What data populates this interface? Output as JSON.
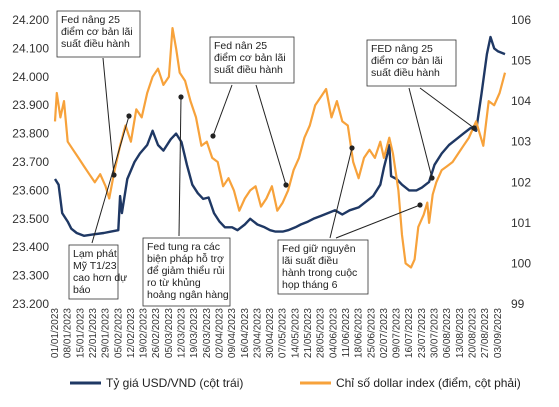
{
  "chart_data": {
    "type": "line",
    "y_left": {
      "ticks": [
        "24.200",
        "24.100",
        "24.000",
        "23.900",
        "23.800",
        "23.700",
        "23.600",
        "23.500",
        "23.400",
        "23.300",
        "23.200"
      ],
      "ylim": [
        23200,
        24200
      ]
    },
    "y_right": {
      "ticks": [
        "106",
        "105",
        "104",
        "103",
        "102",
        "101",
        "100",
        "99"
      ],
      "ylim": [
        99,
        106
      ]
    },
    "x_tick_labels": [
      "01/01/2023",
      "08/01/2023",
      "15/01/2023",
      "22/01/2023",
      "29/01/2023",
      "05/02/2023",
      "12/02/2023",
      "19/02/2023",
      "26/02/2023",
      "05/03/2023",
      "12/03/2023",
      "19/03/2023",
      "26/03/2023",
      "02/04/2023",
      "09/04/2023",
      "16/04/2023",
      "23/04/2023",
      "30/04/2023",
      "07/05/2023",
      "14/05/2023",
      "21/05/2023",
      "28/05/2023",
      "04/06/2023",
      "11/06/2023",
      "18/06/2023",
      "25/06/2023",
      "02/07/2023",
      "09/07/2023",
      "16/07/2023",
      "23/07/2023",
      "30/07/2023",
      "06/08/2023",
      "13/08/2023",
      "20/08/2023",
      "27/08/2023",
      "03/09/2023"
    ],
    "series": [
      {
        "name": "Tỷ giá USD/VND (cột trái)",
        "axis": "left",
        "color": "#1f3864",
        "points": [
          [
            "2023-01-01",
            23640
          ],
          [
            "2023-01-03",
            23620
          ],
          [
            "2023-01-05",
            23520
          ],
          [
            "2023-01-08",
            23490
          ],
          [
            "2023-01-10",
            23465
          ],
          [
            "2023-01-13",
            23450
          ],
          [
            "2023-01-17",
            23440
          ],
          [
            "2023-01-22",
            23445
          ],
          [
            "2023-01-28",
            23450
          ],
          [
            "2023-02-01",
            23455
          ],
          [
            "2023-02-05",
            23460
          ],
          [
            "2023-02-06",
            23580
          ],
          [
            "2023-02-07",
            23520
          ],
          [
            "2023-02-10",
            23640
          ],
          [
            "2023-02-14",
            23700
          ],
          [
            "2023-02-17",
            23730
          ],
          [
            "2023-02-21",
            23760
          ],
          [
            "2023-02-24",
            23810
          ],
          [
            "2023-02-27",
            23760
          ],
          [
            "2023-03-02",
            23740
          ],
          [
            "2023-03-06",
            23780
          ],
          [
            "2023-03-09",
            23800
          ],
          [
            "2023-03-12",
            23770
          ],
          [
            "2023-03-15",
            23690
          ],
          [
            "2023-03-18",
            23620
          ],
          [
            "2023-03-21",
            23590
          ],
          [
            "2023-03-24",
            23570
          ],
          [
            "2023-03-27",
            23575
          ],
          [
            "2023-03-30",
            23520
          ],
          [
            "2023-04-02",
            23490
          ],
          [
            "2023-04-05",
            23470
          ],
          [
            "2023-04-09",
            23470
          ],
          [
            "2023-04-12",
            23460
          ],
          [
            "2023-04-16",
            23480
          ],
          [
            "2023-04-19",
            23500
          ],
          [
            "2023-04-23",
            23480
          ],
          [
            "2023-04-27",
            23470
          ],
          [
            "2023-04-30",
            23460
          ],
          [
            "2023-05-03",
            23455
          ],
          [
            "2023-05-07",
            23455
          ],
          [
            "2023-05-10",
            23460
          ],
          [
            "2023-05-14",
            23470
          ],
          [
            "2023-05-17",
            23480
          ],
          [
            "2023-05-21",
            23490
          ],
          [
            "2023-05-24",
            23500
          ],
          [
            "2023-05-28",
            23510
          ],
          [
            "2023-06-01",
            23520
          ],
          [
            "2023-06-05",
            23530
          ],
          [
            "2023-06-09",
            23515
          ],
          [
            "2023-06-13",
            23530
          ],
          [
            "2023-06-18",
            23540
          ],
          [
            "2023-06-22",
            23560
          ],
          [
            "2023-06-26",
            23580
          ],
          [
            "2023-06-30",
            23620
          ],
          [
            "2023-07-02",
            23680
          ],
          [
            "2023-07-04",
            23730
          ],
          [
            "2023-07-05",
            23760
          ],
          [
            "2023-07-06",
            23650
          ],
          [
            "2023-07-09",
            23640
          ],
          [
            "2023-07-12",
            23620
          ],
          [
            "2023-07-16",
            23600
          ],
          [
            "2023-07-20",
            23600
          ],
          [
            "2023-07-23",
            23610
          ],
          [
            "2023-07-27",
            23630
          ],
          [
            "2023-07-30",
            23690
          ],
          [
            "2023-08-03",
            23730
          ],
          [
            "2023-08-07",
            23760
          ],
          [
            "2023-08-11",
            23780
          ],
          [
            "2023-08-15",
            23800
          ],
          [
            "2023-08-19",
            23820
          ],
          [
            "2023-08-22",
            23810
          ],
          [
            "2023-08-25",
            23940
          ],
          [
            "2023-08-28",
            24080
          ],
          [
            "2023-08-30",
            24140
          ],
          [
            "2023-09-01",
            24100
          ],
          [
            "2023-09-03",
            24090
          ],
          [
            "2023-09-07",
            24080
          ]
        ]
      },
      {
        "name": "Chỉ số dollar index (điểm, cột phải)",
        "axis": "right",
        "color": "#f7a23b",
        "points": [
          [
            "2023-01-01",
            103.5
          ],
          [
            "2023-01-02",
            104.2
          ],
          [
            "2023-01-04",
            103.6
          ],
          [
            "2023-01-06",
            104.0
          ],
          [
            "2023-01-08",
            103.0
          ],
          [
            "2023-01-11",
            102.8
          ],
          [
            "2023-01-14",
            102.6
          ],
          [
            "2023-01-17",
            102.4
          ],
          [
            "2023-01-20",
            102.2
          ],
          [
            "2023-01-23",
            102.0
          ],
          [
            "2023-01-26",
            102.2
          ],
          [
            "2023-01-29",
            101.9
          ],
          [
            "2023-01-31",
            101.6
          ],
          [
            "2023-02-03",
            102.3
          ],
          [
            "2023-02-06",
            102.9
          ],
          [
            "2023-02-09",
            103.4
          ],
          [
            "2023-02-12",
            103.0
          ],
          [
            "2023-02-15",
            103.8
          ],
          [
            "2023-02-18",
            103.6
          ],
          [
            "2023-02-21",
            104.2
          ],
          [
            "2023-02-24",
            104.6
          ],
          [
            "2023-02-27",
            104.8
          ],
          [
            "2023-03-02",
            104.4
          ],
          [
            "2023-03-05",
            104.6
          ],
          [
            "2023-03-07",
            105.8
          ],
          [
            "2023-03-09",
            105.3
          ],
          [
            "2023-03-11",
            104.7
          ],
          [
            "2023-03-14",
            104.5
          ],
          [
            "2023-03-17",
            104.0
          ],
          [
            "2023-03-20",
            103.6
          ],
          [
            "2023-03-23",
            102.9
          ],
          [
            "2023-03-26",
            103.0
          ],
          [
            "2023-03-29",
            102.6
          ],
          [
            "2023-04-01",
            102.5
          ],
          [
            "2023-04-04",
            101.9
          ],
          [
            "2023-04-07",
            102.1
          ],
          [
            "2023-04-10",
            101.8
          ],
          [
            "2023-04-13",
            101.3
          ],
          [
            "2023-04-16",
            101.6
          ],
          [
            "2023-04-19",
            101.8
          ],
          [
            "2023-04-22",
            101.9
          ],
          [
            "2023-04-25",
            101.4
          ],
          [
            "2023-04-28",
            101.6
          ],
          [
            "2023-05-01",
            101.9
          ],
          [
            "2023-05-04",
            101.3
          ],
          [
            "2023-05-07",
            101.5
          ],
          [
            "2023-05-10",
            101.8
          ],
          [
            "2023-05-13",
            102.3
          ],
          [
            "2023-05-16",
            102.6
          ],
          [
            "2023-05-19",
            103.1
          ],
          [
            "2023-05-22",
            103.4
          ],
          [
            "2023-05-25",
            103.9
          ],
          [
            "2023-05-28",
            104.1
          ],
          [
            "2023-05-31",
            104.3
          ],
          [
            "2023-06-03",
            103.6
          ],
          [
            "2023-06-06",
            104.0
          ],
          [
            "2023-06-09",
            103.5
          ],
          [
            "2023-06-12",
            103.4
          ],
          [
            "2023-06-15",
            102.5
          ],
          [
            "2023-06-18",
            102.1
          ],
          [
            "2023-06-21",
            102.6
          ],
          [
            "2023-06-24",
            102.8
          ],
          [
            "2023-06-27",
            102.6
          ],
          [
            "2023-06-30",
            103.0
          ],
          [
            "2023-07-02",
            102.6
          ],
          [
            "2023-07-05",
            103.1
          ],
          [
            "2023-07-07",
            102.7
          ],
          [
            "2023-07-10",
            101.8
          ],
          [
            "2023-07-12",
            100.7
          ],
          [
            "2023-07-14",
            100.0
          ],
          [
            "2023-07-17",
            99.9
          ],
          [
            "2023-07-19",
            100.1
          ],
          [
            "2023-07-21",
            100.9
          ],
          [
            "2023-07-24",
            101.2
          ],
          [
            "2023-07-26",
            101.5
          ],
          [
            "2023-07-27",
            101.0
          ],
          [
            "2023-07-29",
            101.7
          ],
          [
            "2023-07-31",
            102.0
          ],
          [
            "2023-08-03",
            102.3
          ],
          [
            "2023-08-06",
            102.4
          ],
          [
            "2023-08-09",
            102.5
          ],
          [
            "2023-08-12",
            102.7
          ],
          [
            "2023-08-15",
            102.9
          ],
          [
            "2023-08-18",
            103.1
          ],
          [
            "2023-08-20",
            103.3
          ],
          [
            "2023-08-22",
            103.5
          ],
          [
            "2023-08-24",
            103.2
          ],
          [
            "2023-08-26",
            102.9
          ],
          [
            "2023-08-29",
            104.0
          ],
          [
            "2023-09-01",
            103.9
          ],
          [
            "2023-09-04",
            104.2
          ],
          [
            "2023-09-07",
            104.7
          ]
        ]
      }
    ],
    "annotations": [
      {
        "text": [
          "Fed nâng 25",
          "điểm cơ bản lãi",
          "suất điều hành"
        ]
      },
      {
        "text": [
          "Fed nân 25",
          "điểm cơ bản lãi",
          "suất điều hành"
        ]
      },
      {
        "text": [
          "FED nâng 25",
          "điểm cơ bản lãi",
          "suất điều hành"
        ]
      },
      {
        "text": [
          "Lạm phát",
          "Mỹ T1/23",
          "cao hơn dự",
          "báo"
        ]
      },
      {
        "text": [
          "Fed tung ra các",
          "biện pháp hỗ trợ",
          "để giảm thiểu rủi",
          "ro từ khủng",
          "hoảng ngân hàng"
        ]
      },
      {
        "text": [
          "Fed giữ nguyên",
          "lãi suất điều",
          "hành trong cuộc",
          "họp tháng 6"
        ]
      }
    ],
    "legend_position": "bottom",
    "grid": false
  }
}
